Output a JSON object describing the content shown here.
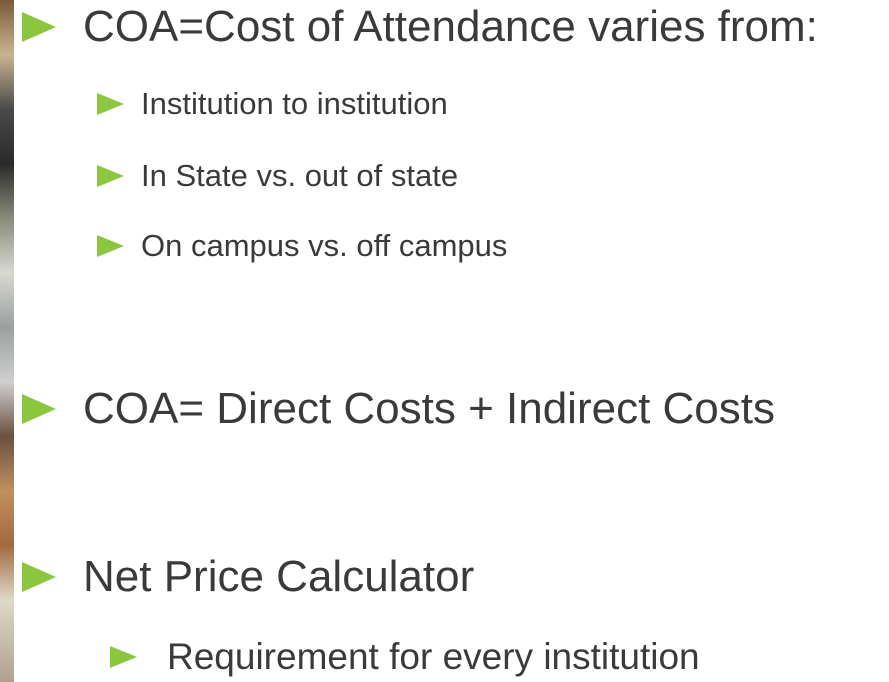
{
  "bullets": [
    {
      "text": "COA=Cost of Attendance varies from:",
      "children": [
        {
          "text": "Institution to institution"
        },
        {
          "text": "In State vs. out of state"
        },
        {
          "text": "On campus vs. off campus"
        }
      ]
    },
    {
      "text": "COA= Direct Costs + Indirect Costs"
    },
    {
      "text": "Net Price Calculator",
      "children": [
        {
          "text": "Requirement for every institution"
        }
      ]
    }
  ]
}
